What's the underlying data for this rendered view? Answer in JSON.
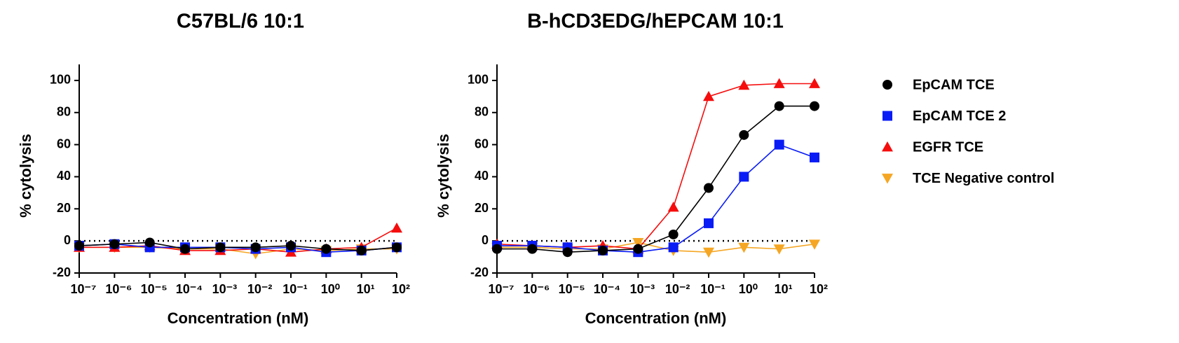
{
  "chart_data": [
    {
      "type": "scatter",
      "title": "C57BL/6 10:1",
      "xlabel": "Concentration (nM)",
      "ylabel": "% cytolysis",
      "log_x": true,
      "zero_line": true,
      "x": [
        1e-07,
        1e-06,
        1e-05,
        0.0001,
        0.001,
        0.01,
        0.1,
        1,
        10,
        100
      ],
      "xlim": [
        1e-07,
        100
      ],
      "xticks": [
        {
          "value": 1e-07,
          "label": "10⁻⁷"
        },
        {
          "value": 1e-06,
          "label": "10⁻⁶"
        },
        {
          "value": 1e-05,
          "label": "10⁻⁵"
        },
        {
          "value": 0.0001,
          "label": "10⁻⁴"
        },
        {
          "value": 0.001,
          "label": "10⁻³"
        },
        {
          "value": 0.01,
          "label": "10⁻²"
        },
        {
          "value": 0.1,
          "label": "10⁻¹"
        },
        {
          "value": 1,
          "label": "10⁰"
        },
        {
          "value": 10,
          "label": "10¹"
        },
        {
          "value": 100,
          "label": "10²"
        }
      ],
      "ylim": [
        -20,
        110
      ],
      "yticks": [
        -20,
        0,
        20,
        40,
        60,
        80,
        100
      ],
      "series": [
        {
          "marker": "circle",
          "color": "#000000",
          "values": [
            -3,
            -2,
            -1,
            -5,
            -4,
            -4,
            -3,
            -5,
            -6,
            -4
          ]
        },
        {
          "marker": "square",
          "color": "#0a1cf5",
          "values": [
            -3,
            -2,
            -4,
            -4,
            -4,
            -5,
            -4,
            -7,
            -6,
            -4
          ]
        },
        {
          "marker": "triangle-up",
          "color": "#f50d0d",
          "values": [
            -4,
            -4,
            -3,
            -6,
            -6,
            -5,
            -7,
            -5,
            -4,
            8
          ]
        },
        {
          "marker": "triangle-down",
          "color": "#f5a623",
          "values": [
            -4,
            -4,
            -4,
            -5,
            -5,
            -8,
            -5,
            -6,
            -5,
            -5
          ]
        }
      ]
    },
    {
      "type": "scatter",
      "title": "B-hCD3EDG/hEPCAM 10:1",
      "xlabel": "Concentration (nM)",
      "ylabel": "% cytolysis",
      "log_x": true,
      "zero_line": true,
      "legend": "right",
      "x": [
        1e-07,
        1e-06,
        1e-05,
        0.0001,
        0.001,
        0.01,
        0.1,
        1,
        10,
        100
      ],
      "xlim": [
        1e-07,
        100
      ],
      "xticks": [
        {
          "value": 1e-07,
          "label": "10⁻⁷"
        },
        {
          "value": 1e-06,
          "label": "10⁻⁶"
        },
        {
          "value": 1e-05,
          "label": "10⁻⁵"
        },
        {
          "value": 0.0001,
          "label": "10⁻⁴"
        },
        {
          "value": 0.001,
          "label": "10⁻³"
        },
        {
          "value": 0.01,
          "label": "10⁻²"
        },
        {
          "value": 0.1,
          "label": "10⁻¹"
        },
        {
          "value": 1,
          "label": "10⁰"
        },
        {
          "value": 10,
          "label": "10¹"
        },
        {
          "value": 100,
          "label": "10²"
        }
      ],
      "ylim": [
        -20,
        110
      ],
      "yticks": [
        -20,
        0,
        20,
        40,
        60,
        80,
        100
      ],
      "series": [
        {
          "name": "EpCAM TCE",
          "marker": "circle",
          "color": "#000000",
          "values": [
            -5,
            -5,
            -7,
            -6,
            -5,
            4,
            33,
            66,
            84,
            84
          ]
        },
        {
          "name": "EpCAM TCE 2",
          "marker": "square",
          "color": "#0a1cf5",
          "values": [
            -3,
            -3,
            -4,
            -6,
            -7,
            -4,
            11,
            40,
            60,
            52
          ]
        },
        {
          "name": "EGFR TCE",
          "marker": "triangle-up",
          "color": "#f50d0d",
          "values": [
            -2,
            -3,
            -4,
            -3,
            -5,
            21,
            90,
            97,
            98,
            98
          ]
        },
        {
          "name": "TCE Negative control",
          "marker": "triangle-down",
          "color": "#f5a623",
          "values": [
            -4,
            -4,
            -5,
            -5,
            -1,
            -6,
            -7,
            -4,
            -5,
            -2
          ]
        }
      ]
    }
  ]
}
